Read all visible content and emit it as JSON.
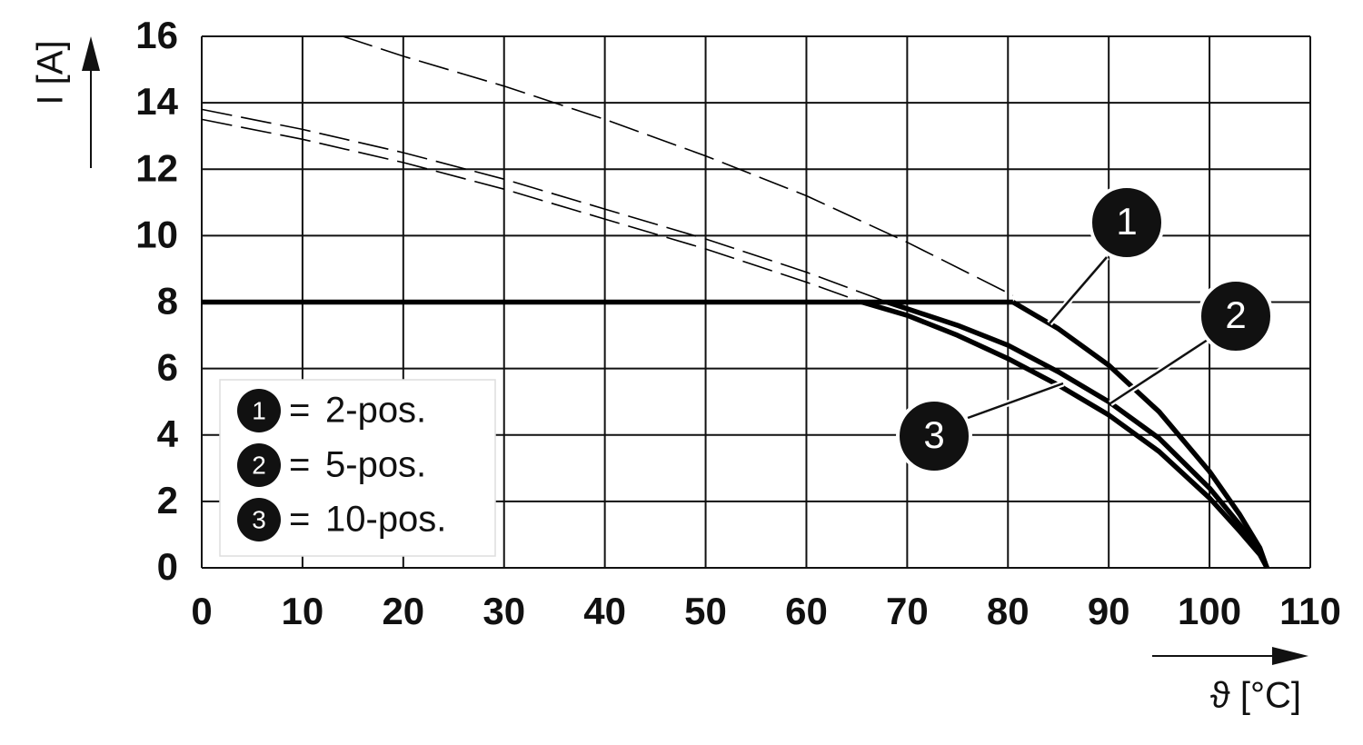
{
  "chart_data": {
    "type": "line",
    "xlabel": "ϑ [°C]",
    "ylabel": "I [A]",
    "xlim": [
      0,
      110
    ],
    "ylim": [
      0,
      16
    ],
    "xticks": [
      0,
      10,
      20,
      30,
      40,
      50,
      60,
      70,
      80,
      90,
      100,
      110
    ],
    "yticks": [
      0,
      2,
      4,
      6,
      8,
      10,
      12,
      14,
      16
    ],
    "grid": true,
    "color": "#000000",
    "legend_separator": "=",
    "limit": {
      "x": [
        0,
        80.5
      ],
      "values": [
        8,
        8
      ]
    },
    "series": [
      {
        "badge": "1",
        "name": "2-pos.",
        "dashed": {
          "x": [
            14,
            20,
            30,
            40,
            50,
            60,
            70,
            80.5
          ],
          "values": [
            16,
            15.4,
            14.5,
            13.5,
            12.4,
            11.2,
            9.8,
            8.2
          ]
        },
        "solid": {
          "x": [
            80.5,
            85,
            90,
            95,
            100,
            103,
            105,
            105.7
          ],
          "values": [
            8,
            7.2,
            6.1,
            4.7,
            2.9,
            1.6,
            0.6,
            0
          ]
        }
      },
      {
        "badge": "2",
        "name": "5-pos.",
        "dashed": {
          "x": [
            0,
            10,
            20,
            30,
            40,
            50,
            60,
            68
          ],
          "values": [
            13.8,
            13.2,
            12.5,
            11.7,
            10.8,
            9.9,
            8.9,
            8
          ]
        },
        "solid": {
          "x": [
            68,
            75,
            80,
            85,
            90,
            95,
            100,
            103,
            105,
            105.7
          ],
          "values": [
            8,
            7.3,
            6.7,
            5.9,
            5.0,
            3.9,
            2.4,
            1.3,
            0.5,
            0
          ]
        }
      },
      {
        "badge": "3",
        "name": "10-pos.",
        "dashed": {
          "x": [
            0,
            10,
            20,
            30,
            40,
            50,
            60,
            65.5
          ],
          "values": [
            13.5,
            12.9,
            12.2,
            11.4,
            10.5,
            9.6,
            8.6,
            8
          ]
        },
        "solid": {
          "x": [
            65.5,
            70,
            75,
            80,
            85,
            90,
            95,
            100,
            103,
            105,
            105.7
          ],
          "values": [
            8,
            7.6,
            7.0,
            6.3,
            5.5,
            4.6,
            3.5,
            2.1,
            1.1,
            0.4,
            0
          ]
        }
      }
    ]
  }
}
